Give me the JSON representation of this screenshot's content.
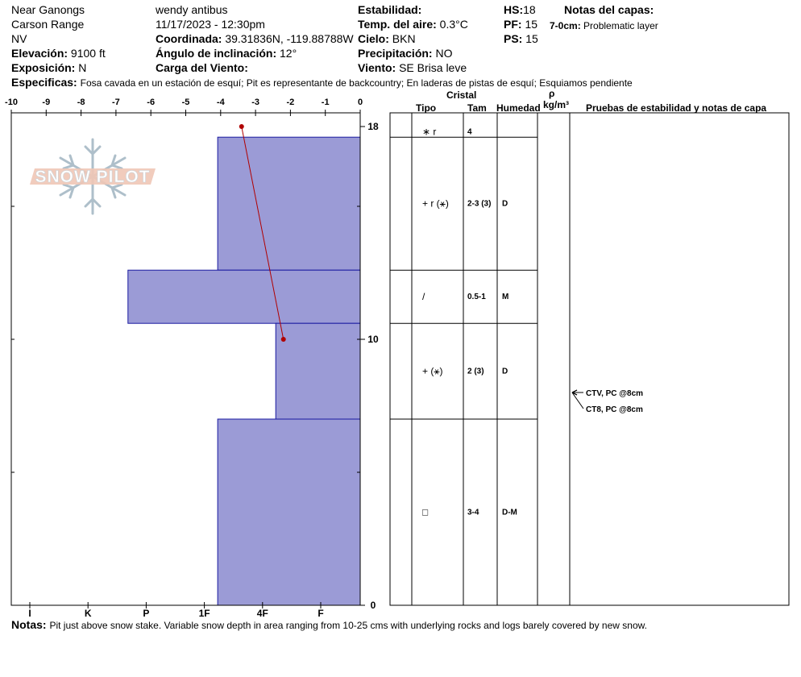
{
  "header": {
    "location": "Near Ganongs",
    "range": "Carson Range",
    "state": "NV",
    "elevation_label": "Elevación:",
    "elevation_value": "9100 ft",
    "aspect_label": "Exposición:",
    "aspect_value": "N",
    "observer": "wendy antibus",
    "datetime": "11/17/2023 - 12:30pm",
    "coord_label": "Coordinada:",
    "coord_value": "39.31836N, -119.88788W",
    "slope_label": "Ángulo de inclinación:",
    "slope_value": "12°",
    "wind_load_label": "Carga del Viento:",
    "wind_load_value": "",
    "stability_label": "Estabilidad:",
    "stability_value": "",
    "air_temp_label": "Temp. del aire:",
    "air_temp_value": "0.3°C",
    "sky_label": "Cielo:",
    "sky_value": "BKN",
    "precip_label": "Precipitación:",
    "precip_value": "NO",
    "wind_label": "Viento:",
    "wind_value": "SE  Brisa leve",
    "hs_label": "HS:",
    "hs_value": "18",
    "pf_label": "PF:",
    "pf_value": "15",
    "ps_label": "PS:",
    "ps_value": "15",
    "layer_notes_label": "Notas del capas:",
    "layer_note_depth": "7-0cm:",
    "layer_note_text": "Problematic layer",
    "specifics_label": "Especificas:",
    "specifics_value": "Fosa cavada en un estación de esquí; Pit es representante de backcountry; En laderas de pistas de esquí; Esquiamos pendiente"
  },
  "table_headers": {
    "cristal": "Cristal",
    "tipo": "Tipo",
    "tam": "Tam",
    "humedad": "Humedad",
    "rho": "ρ",
    "density_unit": "kg/m³",
    "tests": "Pruebas de estabilidad y notas de capa"
  },
  "chart_data": {
    "type": "snow_profile",
    "temp_axis_ticks": [
      "-10",
      "-9",
      "-8",
      "-7",
      "-6",
      "-5",
      "-4",
      "-3",
      "-2",
      "-1",
      "0"
    ],
    "temp_range": [
      -10,
      0
    ],
    "depth_range": [
      0,
      18
    ],
    "depth_labels": [
      "18",
      "10",
      "0"
    ],
    "hardness_ticks": [
      "I",
      "K",
      "P",
      "1F",
      "4F",
      "F"
    ],
    "hardness_scale": [
      "F",
      "4F",
      "1F",
      "P",
      "K",
      "I"
    ],
    "hardness_unit_bar_width_cm": 0.9,
    "temperature_profile": [
      {
        "depth": 18,
        "temp": -3.4
      },
      {
        "depth": 10,
        "temp": -2.2
      }
    ],
    "layers": [
      {
        "top": 18,
        "bottom": 17.6,
        "hardness_units": 0,
        "crystal": "∗ r",
        "size": "4",
        "moisture": ""
      },
      {
        "top": 17.6,
        "bottom": 12.6,
        "hardness_units": 2.7,
        "crystal": "+ r (⚹)",
        "size": "2-3 (3)",
        "moisture": "D"
      },
      {
        "top": 12.6,
        "bottom": 10.6,
        "hardness_units": 4.4,
        "crystal": "/",
        "size": "0.5-1",
        "moisture": "M"
      },
      {
        "top": 10.6,
        "bottom": 7,
        "hardness_units": 1.6,
        "crystal": "+ (⚹)",
        "size": "2 (3)",
        "moisture": "D"
      },
      {
        "top": 7,
        "bottom": 0,
        "hardness_units": 2.7,
        "crystal": "□",
        "size": "3-4",
        "moisture": "D-M"
      }
    ],
    "tests": [
      {
        "label": "CTV, PC @8cm",
        "depth": 8
      },
      {
        "label": "CT8, PC @8cm",
        "depth": 8
      }
    ]
  },
  "logo": {
    "text": "SNOW PILOT"
  },
  "colors": {
    "layer_fill": "#9b9bd6",
    "layer_stroke": "#1a1aa0",
    "temp_line": "#b00000"
  },
  "notes_label": "Notas:",
  "notes_value": "Pit just above snow stake.  Variable snow depth in area ranging from 10-25 cms with underlying rocks and logs barely covered by new snow."
}
